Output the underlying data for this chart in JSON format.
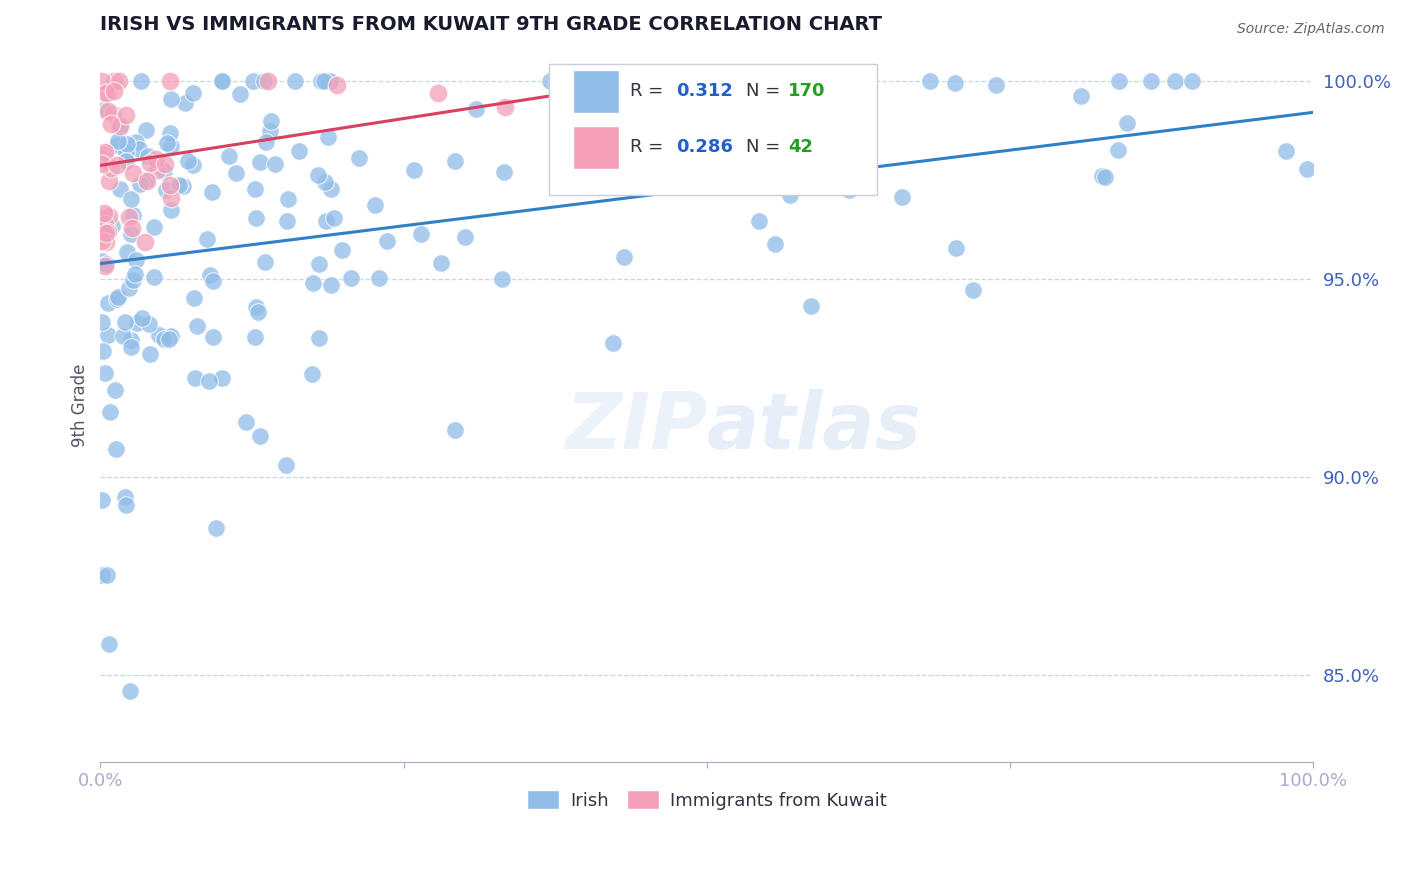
{
  "title": "IRISH VS IMMIGRANTS FROM KUWAIT 9TH GRADE CORRELATION CHART",
  "source": "Source: ZipAtlas.com",
  "ylabel": "9th Grade",
  "xlim": [
    0.0,
    1.0
  ],
  "ylim": [
    0.828,
    1.008
  ],
  "yticks": [
    0.85,
    0.9,
    0.95,
    1.0
  ],
  "ytick_labels": [
    "85.0%",
    "90.0%",
    "95.0%",
    "100.0%"
  ],
  "xticks": [
    0.0,
    0.25,
    0.5,
    0.75,
    1.0
  ],
  "xtick_labels": [
    "0.0%",
    "",
    "",
    "",
    "100.0%"
  ],
  "irish_R": 0.312,
  "irish_N": 170,
  "kuwait_R": 0.286,
  "kuwait_N": 42,
  "blue_color": "#90bce8",
  "pink_color": "#f4a0b8",
  "blue_line_color": "#3080c8",
  "pink_line_color": "#d84060",
  "legend_R_color": "#2060c8",
  "legend_N_color": "#20a020",
  "background_color": "#ffffff",
  "grid_color": "#c8d0e0",
  "title_color": "#1a1a2e",
  "axis_color": "#4060c0",
  "watermark": "ZIPatlas",
  "seed": 12
}
